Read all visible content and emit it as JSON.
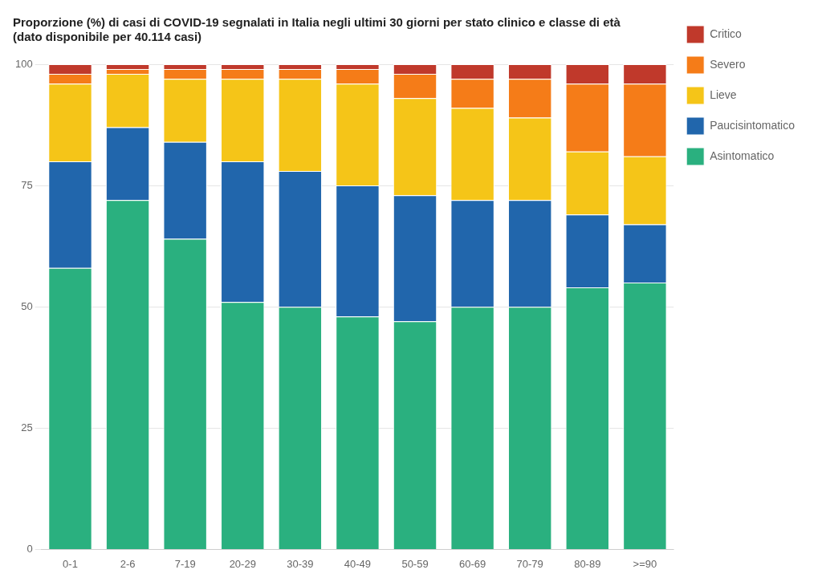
{
  "chart_data": {
    "type": "bar",
    "title": "Proporzione (%) di casi di COVID-19 segnalati in Italia negli ultimi 30 giorni per stato clinico e classe di età\n(dato disponibile per 40.114 casi)",
    "categories": [
      "0-1",
      "2-6",
      "7-19",
      "20-29",
      "30-39",
      "40-49",
      "50-59",
      "60-69",
      "70-79",
      "80-89",
      ">=90"
    ],
    "series": [
      {
        "name": "Asintomatico",
        "color": "#2ab07f",
        "values": [
          58,
          72,
          64,
          51,
          50,
          48,
          47,
          50,
          50,
          54,
          55
        ]
      },
      {
        "name": "Paucisintomatico",
        "color": "#2166ac",
        "values": [
          22,
          15,
          20,
          29,
          28,
          27,
          26,
          22,
          22,
          15,
          12
        ]
      },
      {
        "name": "Lieve",
        "color": "#f5c518",
        "values": [
          16,
          11,
          13,
          17,
          19,
          21,
          20,
          19,
          17,
          13,
          14
        ]
      },
      {
        "name": "Severo",
        "color": "#f57c18",
        "values": [
          2,
          1,
          2,
          2,
          2,
          3,
          5,
          6,
          8,
          14,
          15
        ]
      },
      {
        "name": "Critico",
        "color": "#c0392b",
        "values": [
          2,
          1,
          1,
          1,
          1,
          1,
          2,
          3,
          3,
          4,
          4
        ]
      }
    ],
    "stacked": true,
    "ylim": [
      0,
      100
    ],
    "yticks": [
      0,
      25,
      50,
      75,
      100
    ],
    "grid": true,
    "legend": "right"
  }
}
